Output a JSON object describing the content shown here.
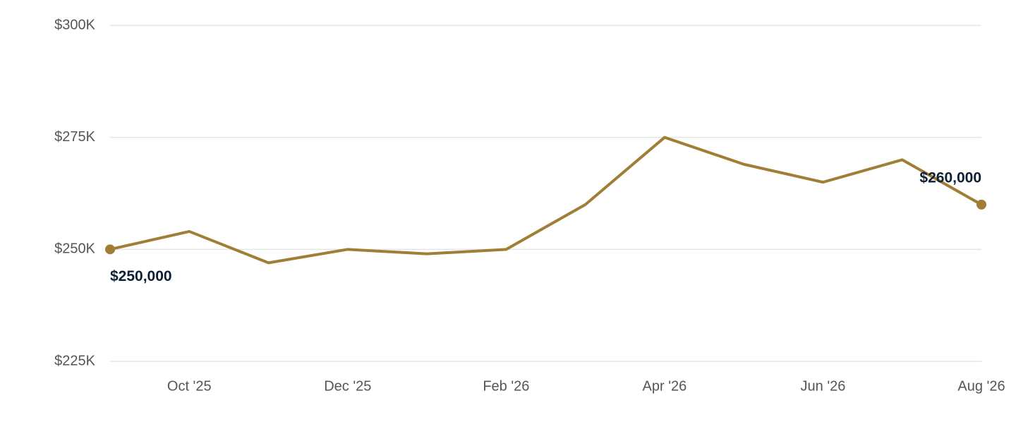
{
  "chart_data": {
    "type": "line",
    "categories": [
      null,
      "Oct '25",
      null,
      "Dec '25",
      null,
      "Feb '26",
      null,
      "Apr '26",
      null,
      "Jun '26",
      null,
      "Aug '26"
    ],
    "series": [
      {
        "color": "#a07e35",
        "values": [
          250000,
          254000,
          247000,
          250000,
          249000,
          250000,
          260000,
          275000,
          269000,
          265000,
          270000,
          260000
        ],
        "value_labels": [
          "$250,000",
          null,
          null,
          null,
          null,
          null,
          null,
          null,
          null,
          null,
          null,
          "$260,000"
        ]
      }
    ],
    "ylim": [
      225000,
      300000
    ],
    "yticks": [
      {
        "value": 225000,
        "label": "$225K"
      },
      {
        "value": 250000,
        "label": "$250K"
      },
      {
        "value": 275000,
        "label": "$275K"
      },
      {
        "value": 300000,
        "label": "$300K"
      }
    ],
    "grid": true
  }
}
